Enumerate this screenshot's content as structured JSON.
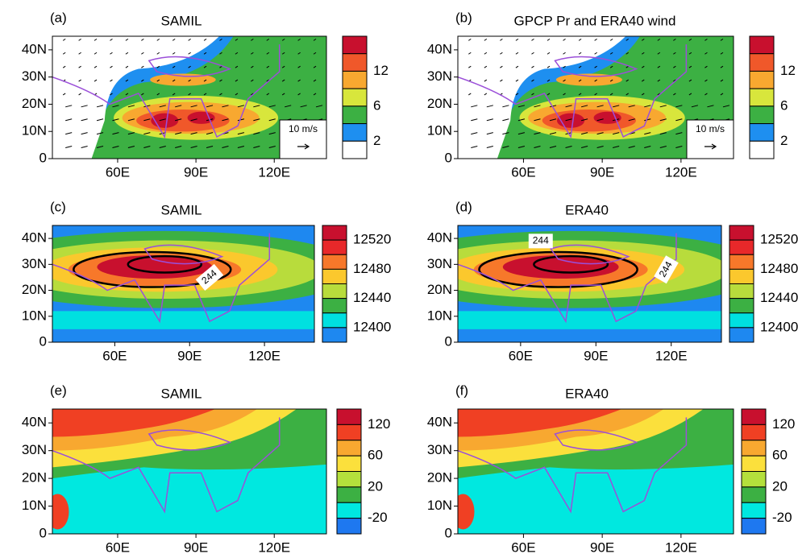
{
  "axes": {
    "lat_labels": [
      "0",
      "10N",
      "20N",
      "30N",
      "40N"
    ],
    "lon_labels": [
      "60E",
      "90E",
      "120E"
    ]
  },
  "panels": [
    {
      "label": "(a)",
      "title": "SAMIL",
      "colorbar_labels": [
        12,
        6,
        2
      ],
      "reference_vector": "10 m/s"
    },
    {
      "label": "(b)",
      "title": "GPCP Pr and ERA40 wind",
      "colorbar_labels": [
        12,
        6,
        2
      ],
      "reference_vector": "10 m/s"
    },
    {
      "label": "(c)",
      "title": "SAMIL",
      "colorbar_labels": [
        12520,
        12480,
        12440,
        12400
      ],
      "contour_labels": [
        "244"
      ]
    },
    {
      "label": "(d)",
      "title": "ERA40",
      "colorbar_labels": [
        12520,
        12480,
        12440,
        12400
      ],
      "contour_labels": [
        "244",
        "244"
      ]
    },
    {
      "label": "(e)",
      "title": "SAMIL",
      "colorbar_labels": [
        120,
        60,
        20,
        -20
      ]
    },
    {
      "label": "(f)",
      "title": "ERA40",
      "colorbar_labels": [
        120,
        60,
        20,
        -20
      ]
    }
  ]
}
